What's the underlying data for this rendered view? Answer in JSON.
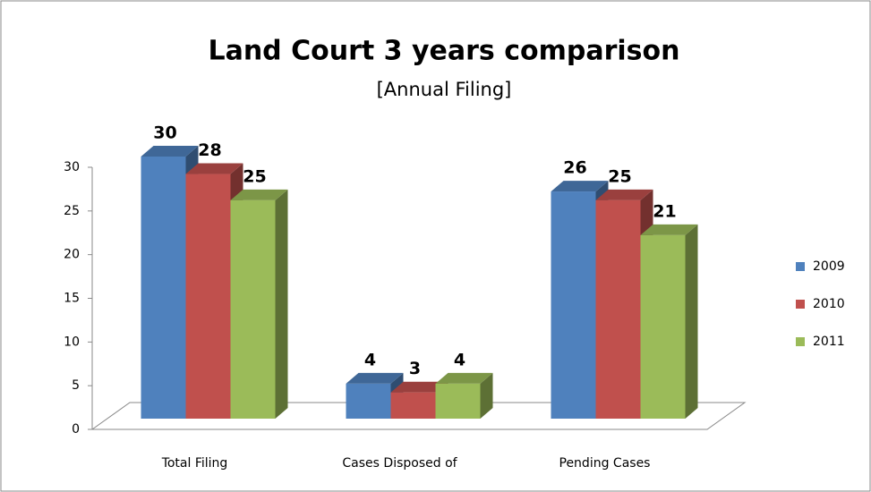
{
  "chart_data": {
    "type": "bar3d",
    "title": "Land Court 3 years comparison",
    "subtitle": "[Annual Filing]",
    "categories": [
      "Total Filing",
      "Cases Disposed of",
      "Pending Cases"
    ],
    "series": [
      {
        "name": "2009",
        "color": "#4f81bd",
        "values": [
          30,
          4,
          26
        ]
      },
      {
        "name": "2010",
        "color": "#c0504d",
        "values": [
          28,
          3,
          25
        ]
      },
      {
        "name": "2011",
        "color": "#9bbb59",
        "values": [
          25,
          4,
          21
        ]
      }
    ],
    "ylim": [
      0,
      30
    ],
    "yticks": [
      0,
      5,
      10,
      15,
      20,
      25,
      30
    ],
    "legend": "right"
  }
}
